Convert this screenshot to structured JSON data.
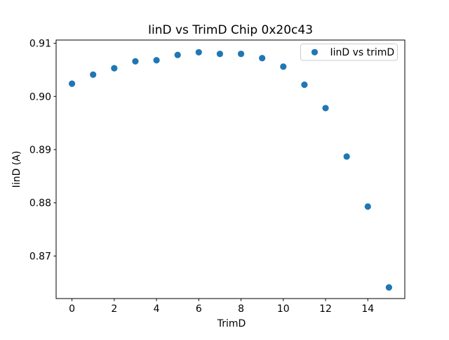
{
  "chart_data": {
    "type": "scatter",
    "title": "IinD vs TrimD Chip 0x20c43",
    "xlabel": "TrimD",
    "ylabel": "IinD (A)",
    "legend_label": "IinD vs trimD",
    "legend_position": "upper right",
    "marker_color": "#1f77b4",
    "x": [
      0,
      1,
      2,
      3,
      4,
      5,
      6,
      7,
      8,
      9,
      10,
      11,
      12,
      13,
      14,
      15
    ],
    "y": [
      0.9024,
      0.9041,
      0.9053,
      0.9066,
      0.9068,
      0.9078,
      0.9083,
      0.908,
      0.908,
      0.9072,
      0.9056,
      0.9022,
      0.8978,
      0.8887,
      0.8793,
      0.8641
    ],
    "xlim": [
      -0.75,
      15.75
    ],
    "ylim": [
      0.862,
      0.9106
    ],
    "xticks": [
      0,
      2,
      4,
      6,
      8,
      10,
      12,
      14
    ],
    "yticks": [
      0.87,
      0.88,
      0.89,
      0.9,
      0.91
    ],
    "grid": false,
    "colors": {
      "marker": "#1f77b4",
      "spine": "#000000",
      "legend_border": "#cccccc",
      "background": "#ffffff"
    }
  }
}
